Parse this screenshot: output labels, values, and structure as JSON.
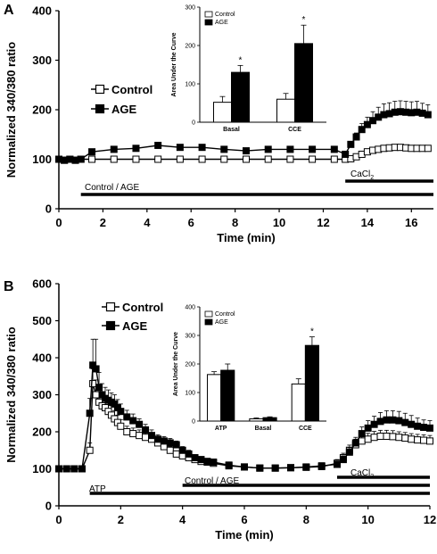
{
  "chart_data": [
    {
      "panel": "A",
      "type": "line",
      "xlabel": "Time (min)",
      "ylabel": "Normalized 340/380 ratio",
      "xlim": [
        0,
        17
      ],
      "ylim": [
        0,
        400
      ],
      "xticks": [
        0,
        2,
        4,
        6,
        8,
        10,
        12,
        14,
        16
      ],
      "yticks": [
        0,
        100,
        200,
        300,
        400
      ],
      "legend": [
        "Control",
        "AGE"
      ],
      "legend_position": "center-left",
      "series": [
        {
          "name": "Control",
          "marker": "open-square",
          "x": [
            0,
            0.25,
            0.5,
            0.75,
            1.0,
            1.5,
            2.5,
            3.5,
            4.5,
            5.5,
            6.5,
            7.5,
            8.5,
            9.5,
            10.5,
            11.5,
            12.5,
            13.0,
            13.25,
            13.5,
            13.75,
            14.0,
            14.25,
            14.5,
            14.75,
            15.0,
            15.25,
            15.5,
            15.75,
            16.0,
            16.25,
            16.5,
            16.75
          ],
          "y": [
            100,
            98,
            100,
            98,
            100,
            100,
            100,
            100,
            100,
            100,
            100,
            100,
            100,
            100,
            100,
            100,
            100,
            100,
            101,
            105,
            110,
            115,
            118,
            120,
            122,
            123,
            124,
            124,
            123,
            122,
            122,
            122,
            122
          ]
        },
        {
          "name": "AGE",
          "marker": "filled-square",
          "x": [
            0,
            0.25,
            0.5,
            0.75,
            1.0,
            1.5,
            2.5,
            3.5,
            4.5,
            5.5,
            6.5,
            7.5,
            8.5,
            9.5,
            10.5,
            11.5,
            12.5,
            13.0,
            13.25,
            13.5,
            13.75,
            14.0,
            14.25,
            14.5,
            14.75,
            15.0,
            15.25,
            15.5,
            15.75,
            16.0,
            16.25,
            16.5,
            16.75
          ],
          "y": [
            100,
            98,
            100,
            98,
            100,
            115,
            120,
            122,
            128,
            124,
            124,
            120,
            117,
            120,
            120,
            120,
            120,
            110,
            130,
            145,
            160,
            170,
            178,
            185,
            190,
            192,
            195,
            196,
            195,
            194,
            195,
            193,
            190
          ],
          "error": [
            0,
            0,
            0,
            0,
            0,
            0,
            0,
            0,
            0,
            0,
            0,
            0,
            0,
            0,
            0,
            0,
            0,
            0,
            5,
            8,
            12,
            15,
            18,
            20,
            22,
            22,
            22,
            22,
            22,
            22,
            22,
            20,
            20
          ]
        }
      ],
      "annotations": [
        {
          "text": "Control / AGE",
          "x_range": [
            1,
            17
          ]
        },
        {
          "text": "CaCl",
          "subscript": "2",
          "x_range": [
            13,
            17
          ]
        }
      ],
      "inset": {
        "type": "bar",
        "ylabel": "Area Under the Curve",
        "ylim": [
          0,
          300
        ],
        "yticks": [
          0,
          100,
          200,
          300
        ],
        "categories": [
          "Basal",
          "CCE"
        ],
        "legend": [
          "Control",
          "AGE"
        ],
        "series": [
          {
            "name": "Control",
            "values": [
              52,
              60
            ],
            "error": [
              15,
              15
            ]
          },
          {
            "name": "AGE",
            "values": [
              130,
              205
            ],
            "error": [
              18,
              48
            ]
          }
        ],
        "significance": [
          "*",
          "*"
        ]
      }
    },
    {
      "panel": "B",
      "type": "line",
      "xlabel": "Time (min)",
      "ylabel": "Normalized 340/380 ratio",
      "xlim": [
        0,
        12
      ],
      "ylim": [
        0,
        600
      ],
      "xticks": [
        0,
        2,
        4,
        6,
        8,
        10,
        12
      ],
      "yticks": [
        0,
        100,
        200,
        300,
        400,
        500,
        600
      ],
      "legend": [
        "Control",
        "AGE"
      ],
      "legend_position": "top-left",
      "series": [
        {
          "name": "Control",
          "marker": "open-square",
          "x": [
            0,
            0.25,
            0.5,
            0.75,
            1.0,
            1.1,
            1.2,
            1.3,
            1.4,
            1.5,
            1.6,
            1.7,
            1.8,
            1.9,
            2.0,
            2.2,
            2.4,
            2.6,
            2.8,
            3.0,
            3.2,
            3.4,
            3.6,
            3.8,
            4.0,
            4.2,
            4.4,
            4.6,
            4.8,
            5.0,
            5.5,
            6.0,
            6.5,
            7.0,
            7.5,
            8.0,
            8.5,
            9.0,
            9.2,
            9.4,
            9.6,
            9.8,
            10.0,
            10.2,
            10.4,
            10.6,
            10.8,
            11.0,
            11.2,
            11.4,
            11.6,
            11.8,
            12.0
          ],
          "y": [
            100,
            100,
            100,
            100,
            150,
            330,
            300,
            280,
            270,
            265,
            255,
            245,
            235,
            225,
            215,
            200,
            195,
            190,
            185,
            180,
            170,
            160,
            150,
            140,
            135,
            130,
            125,
            120,
            118,
            115,
            108,
            105,
            102,
            102,
            103,
            104,
            106,
            115,
            130,
            150,
            165,
            175,
            180,
            185,
            188,
            188,
            187,
            185,
            183,
            180,
            178,
            177,
            175
          ],
          "error": [
            0,
            0,
            0,
            0,
            20,
            40,
            40,
            35,
            30,
            30,
            28,
            25,
            22,
            20,
            18,
            15,
            15,
            15,
            12,
            12,
            10,
            10,
            10,
            8,
            8,
            8,
            8,
            6,
            6,
            6,
            5,
            5,
            5,
            5,
            5,
            5,
            5,
            10,
            12,
            14,
            15,
            16,
            16,
            16,
            16,
            16,
            16,
            15,
            15,
            15,
            15,
            15,
            15
          ]
        },
        {
          "name": "AGE",
          "marker": "filled-square",
          "x": [
            0,
            0.25,
            0.5,
            0.75,
            1.0,
            1.1,
            1.2,
            1.3,
            1.4,
            1.5,
            1.6,
            1.7,
            1.8,
            1.9,
            2.0,
            2.2,
            2.4,
            2.6,
            2.8,
            3.0,
            3.2,
            3.4,
            3.6,
            3.8,
            4.0,
            4.2,
            4.4,
            4.6,
            4.8,
            5.0,
            5.5,
            6.0,
            6.5,
            7.0,
            7.5,
            8.0,
            8.5,
            9.0,
            9.2,
            9.4,
            9.6,
            9.8,
            10.0,
            10.2,
            10.4,
            10.6,
            10.8,
            11.0,
            11.2,
            11.4,
            11.6,
            11.8,
            12.0
          ],
          "y": [
            100,
            100,
            100,
            100,
            250,
            380,
            370,
            320,
            300,
            290,
            285,
            280,
            275,
            265,
            255,
            240,
            230,
            220,
            205,
            190,
            180,
            175,
            170,
            165,
            150,
            140,
            130,
            125,
            120,
            118,
            110,
            105,
            102,
            102,
            103,
            105,
            108,
            112,
            125,
            145,
            170,
            195,
            210,
            220,
            228,
            232,
            232,
            230,
            225,
            220,
            215,
            212,
            210
          ],
          "error": [
            0,
            0,
            0,
            0,
            40,
            70,
            80,
            40,
            30,
            30,
            28,
            25,
            25,
            22,
            20,
            18,
            18,
            15,
            15,
            15,
            12,
            12,
            12,
            10,
            10,
            10,
            8,
            8,
            8,
            8,
            6,
            6,
            5,
            5,
            5,
            5,
            6,
            8,
            10,
            12,
            15,
            18,
            20,
            22,
            24,
            25,
            25,
            25,
            25,
            24,
            22,
            20,
            20
          ]
        }
      ],
      "annotations": [
        {
          "text": "ATP",
          "x_range": [
            1,
            12
          ]
        },
        {
          "text": "Control / AGE",
          "x_range": [
            4,
            12
          ]
        },
        {
          "text": "CaCl",
          "subscript": "2",
          "x_range": [
            9,
            12
          ]
        }
      ],
      "inset": {
        "type": "bar",
        "ylabel": "Area Under the Curve",
        "ylim": [
          0,
          400
        ],
        "yticks": [
          0,
          100,
          200,
          300,
          400
        ],
        "categories": [
          "ATP",
          "Basal",
          "CCE"
        ],
        "legend": [
          "Control",
          "AGE"
        ],
        "series": [
          {
            "name": "Control",
            "values": [
              163,
              8,
              130
            ],
            "error": [
              10,
              3,
              18
            ]
          },
          {
            "name": "AGE",
            "values": [
              178,
              12,
              265
            ],
            "error": [
              22,
              3,
              30
            ]
          }
        ],
        "significance": [
          "",
          "",
          "*"
        ]
      }
    }
  ]
}
